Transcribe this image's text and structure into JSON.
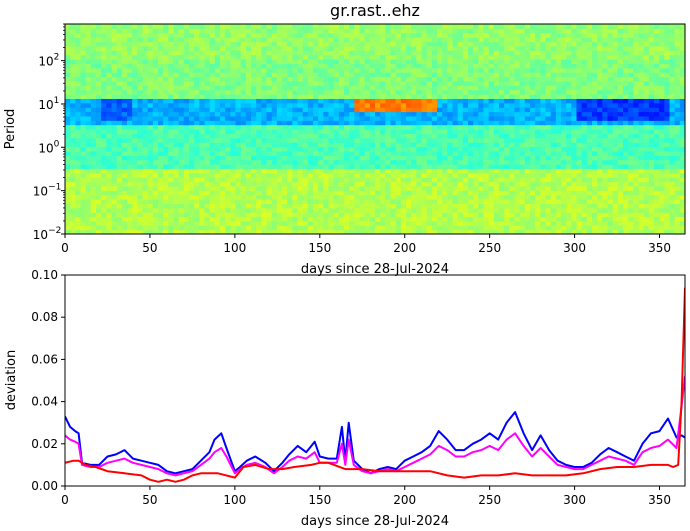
{
  "chart_data": [
    {
      "type": "heatmap",
      "title": "gr.rast..ehz",
      "xlabel": "days since 28-Jul-2024",
      "ylabel": "Period",
      "xlim": [
        0,
        365
      ],
      "ylim": [
        0.01,
        700
      ],
      "yscale": "log",
      "xticks": [
        0,
        50,
        100,
        150,
        200,
        250,
        300,
        350
      ],
      "yticks": [
        {
          "value": 0.01,
          "label": "10",
          "exp": "−2"
        },
        {
          "value": 0.1,
          "label": "10",
          "exp": "−1"
        },
        {
          "value": 1,
          "label": "10",
          "exp": "0"
        },
        {
          "value": 10,
          "label": "10",
          "exp": "1"
        },
        {
          "value": 100,
          "label": "10",
          "exp": "2"
        }
      ],
      "colormap": "jet",
      "colorbar": false,
      "bands": [
        {
          "period_range": [
            100,
            700
          ],
          "level": 0.52,
          "note": "upper band, green"
        },
        {
          "period_range": [
            12,
            100
          ],
          "level": 0.5,
          "note": "green"
        },
        {
          "period_range": [
            3,
            12
          ],
          "level": 0.3,
          "note": "cyan/blue band near 10 s"
        },
        {
          "period_range": [
            0.3,
            3
          ],
          "level": 0.45,
          "note": "light green/cyan"
        },
        {
          "period_range": [
            0.01,
            0.3
          ],
          "level": 0.55,
          "note": "green-yellow"
        }
      ],
      "anomalies": [
        {
          "x_range": [
            170,
            218
          ],
          "period_range": [
            7,
            13
          ],
          "level": 0.75,
          "note": "yellow/orange"
        },
        {
          "x_range": [
            300,
            355
          ],
          "period_range": [
            4,
            12
          ],
          "level": 0.18,
          "note": "dark blue"
        },
        {
          "x_range": [
            20,
            40
          ],
          "period_range": [
            4,
            12
          ],
          "level": 0.22,
          "note": "blue"
        }
      ]
    },
    {
      "type": "line",
      "title": "",
      "xlabel": "days since 28-Jul-2024",
      "ylabel": "deviation",
      "xlim": [
        0,
        365
      ],
      "ylim": [
        0,
        0.1
      ],
      "xticks": [
        0,
        50,
        100,
        150,
        200,
        250,
        300,
        350
      ],
      "yticks": [
        "0.00",
        "0.02",
        "0.04",
        "0.06",
        "0.08",
        "0.10"
      ],
      "series": [
        {
          "color": "#0000ff",
          "x": [
            0,
            3,
            6,
            8,
            10,
            15,
            20,
            25,
            30,
            35,
            40,
            45,
            50,
            55,
            60,
            65,
            70,
            75,
            80,
            85,
            88,
            92,
            95,
            100,
            103,
            107,
            112,
            118,
            123,
            128,
            132,
            137,
            142,
            147,
            150,
            155,
            160,
            163,
            165,
            167,
            170,
            175,
            180,
            185,
            190,
            195,
            200,
            205,
            210,
            215,
            220,
            225,
            230,
            235,
            240,
            245,
            250,
            255,
            260,
            265,
            270,
            275,
            280,
            285,
            290,
            295,
            300,
            305,
            310,
            315,
            320,
            325,
            330,
            335,
            340,
            345,
            350,
            355,
            360,
            363,
            365
          ],
          "y": [
            0.033,
            0.028,
            0.026,
            0.025,
            0.011,
            0.01,
            0.01,
            0.014,
            0.015,
            0.017,
            0.013,
            0.012,
            0.011,
            0.01,
            0.007,
            0.006,
            0.007,
            0.008,
            0.012,
            0.016,
            0.022,
            0.025,
            0.018,
            0.007,
            0.009,
            0.012,
            0.014,
            0.011,
            0.007,
            0.011,
            0.015,
            0.019,
            0.016,
            0.021,
            0.014,
            0.013,
            0.013,
            0.028,
            0.012,
            0.03,
            0.012,
            0.008,
            0.006,
            0.008,
            0.009,
            0.008,
            0.012,
            0.014,
            0.016,
            0.019,
            0.026,
            0.022,
            0.017,
            0.017,
            0.02,
            0.022,
            0.025,
            0.022,
            0.03,
            0.035,
            0.025,
            0.017,
            0.024,
            0.017,
            0.012,
            0.01,
            0.009,
            0.009,
            0.011,
            0.015,
            0.018,
            0.016,
            0.014,
            0.012,
            0.02,
            0.025,
            0.026,
            0.032,
            0.023,
            0.024,
            0.023
          ]
        },
        {
          "color": "#ff00ff",
          "x": [
            0,
            3,
            6,
            8,
            10,
            15,
            20,
            25,
            30,
            35,
            40,
            45,
            50,
            55,
            60,
            65,
            70,
            75,
            80,
            85,
            88,
            92,
            95,
            100,
            103,
            107,
            112,
            118,
            123,
            128,
            132,
            137,
            142,
            147,
            150,
            155,
            160,
            163,
            165,
            167,
            170,
            175,
            180,
            185,
            190,
            195,
            200,
            205,
            210,
            215,
            220,
            225,
            230,
            235,
            240,
            245,
            250,
            255,
            260,
            265,
            270,
            275,
            280,
            285,
            290,
            295,
            300,
            305,
            310,
            315,
            320,
            325,
            330,
            335,
            340,
            345,
            350,
            355,
            360,
            363,
            365
          ],
          "y": [
            0.024,
            0.022,
            0.021,
            0.02,
            0.01,
            0.009,
            0.009,
            0.011,
            0.012,
            0.013,
            0.011,
            0.01,
            0.009,
            0.008,
            0.006,
            0.005,
            0.006,
            0.007,
            0.01,
            0.013,
            0.016,
            0.018,
            0.014,
            0.006,
            0.008,
            0.01,
            0.011,
            0.009,
            0.006,
            0.009,
            0.012,
            0.014,
            0.013,
            0.016,
            0.011,
            0.011,
            0.011,
            0.02,
            0.01,
            0.022,
            0.01,
            0.007,
            0.006,
            0.007,
            0.008,
            0.007,
            0.009,
            0.011,
            0.013,
            0.015,
            0.019,
            0.017,
            0.014,
            0.014,
            0.016,
            0.017,
            0.019,
            0.017,
            0.022,
            0.025,
            0.019,
            0.014,
            0.018,
            0.014,
            0.01,
            0.009,
            0.008,
            0.008,
            0.01,
            0.012,
            0.014,
            0.013,
            0.012,
            0.01,
            0.016,
            0.018,
            0.019,
            0.022,
            0.018,
            0.038,
            0.052
          ]
        },
        {
          "color": "#ff0000",
          "x": [
            0,
            5,
            8,
            12,
            18,
            25,
            35,
            45,
            50,
            55,
            60,
            65,
            70,
            75,
            80,
            90,
            100,
            105,
            112,
            120,
            128,
            135,
            145,
            150,
            155,
            165,
            175,
            185,
            195,
            205,
            215,
            225,
            235,
            245,
            255,
            265,
            275,
            285,
            295,
            305,
            315,
            325,
            335,
            345,
            355,
            358,
            361,
            363,
            365
          ],
          "y": [
            0.011,
            0.012,
            0.012,
            0.01,
            0.009,
            0.007,
            0.006,
            0.005,
            0.003,
            0.002,
            0.003,
            0.002,
            0.003,
            0.005,
            0.006,
            0.006,
            0.004,
            0.009,
            0.01,
            0.008,
            0.008,
            0.009,
            0.01,
            0.011,
            0.011,
            0.008,
            0.008,
            0.007,
            0.007,
            0.007,
            0.007,
            0.005,
            0.004,
            0.005,
            0.005,
            0.006,
            0.005,
            0.005,
            0.005,
            0.006,
            0.008,
            0.009,
            0.009,
            0.01,
            0.01,
            0.009,
            0.01,
            0.04,
            0.094
          ]
        }
      ]
    }
  ]
}
